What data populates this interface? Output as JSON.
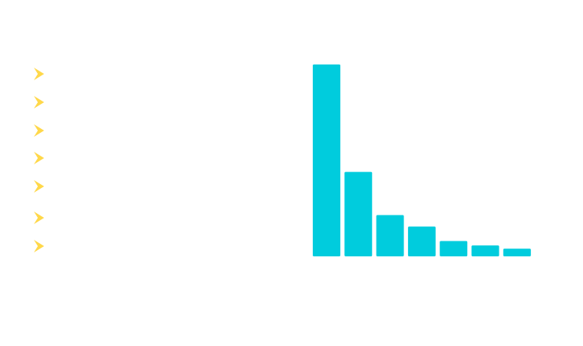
{
  "colors": {
    "bar": "#00CCDD",
    "bullet": "#FFD84A",
    "background": "#FFFFFF"
  },
  "bullet_icon": "chevron-right-icon",
  "bullet_count": 7,
  "chart_data": {
    "type": "bar",
    "categories": [
      "",
      "",
      "",
      "",
      "",
      "",
      ""
    ],
    "values": [
      100,
      44,
      21.5,
      15.5,
      8,
      5.7,
      4
    ],
    "ylim": [
      0,
      100
    ],
    "grid": false,
    "legend": "none"
  }
}
